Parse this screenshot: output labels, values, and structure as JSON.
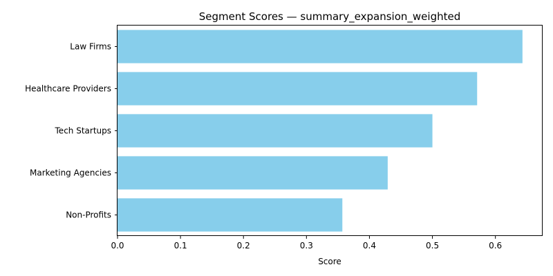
{
  "chart_data": {
    "type": "bar",
    "orientation": "horizontal",
    "title": "Segment Scores — summary_expansion_weighted",
    "xlabel": "Score",
    "ylabel": "",
    "categories": [
      "Law Firms",
      "Healthcare Providers",
      "Tech Startups",
      "Marketing Agencies",
      "Non-Profits"
    ],
    "values": [
      0.643,
      0.571,
      0.5,
      0.429,
      0.357
    ],
    "xlim": [
      0,
      0.675
    ],
    "xticks": [
      "0.0",
      "0.1",
      "0.2",
      "0.3",
      "0.4",
      "0.5",
      "0.6"
    ],
    "bar_color": "#87CEEB",
    "grid": false,
    "legend": "none"
  }
}
